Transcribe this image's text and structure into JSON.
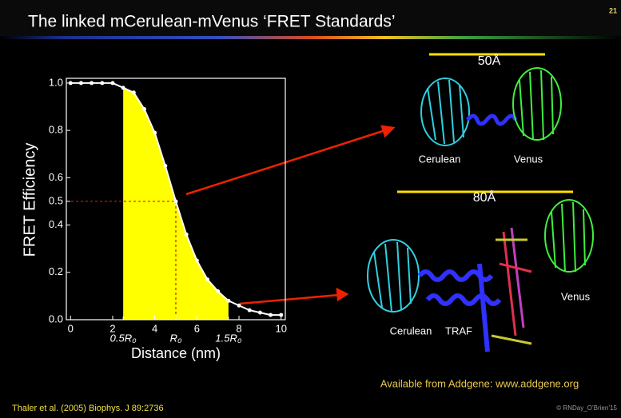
{
  "slide": {
    "title": "The linked mCerulean-mVenus ‘FRET Standards’",
    "number": "21",
    "structures": [
      {
        "distance": "50Å",
        "labels": [
          "Cerulean",
          "Venus"
        ]
      },
      {
        "distance": "80Å",
        "labels": [
          "Cerulean",
          "TRAF",
          "Venus"
        ]
      }
    ],
    "availability": "Available from Addgene: www.addgene.org",
    "citation": "Thaler et al. (2005) Biophys. J 89:2736",
    "copyright": "© RNDay_O’Brien’15"
  },
  "chart_data": {
    "type": "line",
    "x_label": "Distance (nm)",
    "y_label": "FRET Efficiency",
    "x": [
      0,
      0.5,
      1,
      1.5,
      2,
      2.5,
      3,
      3.5,
      4,
      4.5,
      5,
      5.5,
      6,
      6.5,
      7,
      7.5,
      8,
      8.5,
      9,
      9.5,
      10
    ],
    "series": [
      {
        "color": "#ffffff",
        "values": [
          1,
          1,
          1,
          1,
          1,
          0.98,
          0.96,
          0.89,
          0.79,
          0.65,
          0.5,
          0.36,
          0.25,
          0.17,
          0.12,
          0.08,
          0.06,
          0.04,
          0.03,
          0.02,
          0.02
        ]
      }
    ],
    "xlim": [
      -0.2,
      10.2
    ],
    "ylim": [
      0,
      1.02
    ],
    "xticks": [
      0,
      2,
      4,
      6,
      8,
      10
    ],
    "yticks": [
      {
        "value": 0,
        "label": "0.0"
      },
      0.2,
      0.4,
      0.5,
      0.6,
      0.8,
      {
        "value": 1,
        "label": "1.0"
      }
    ],
    "annotations": [
      {
        "x": 2.5,
        "label": "0.5R₀"
      },
      {
        "x": 5,
        "label": "R₀"
      },
      {
        "x": 7.5,
        "label": "1.5R₀"
      }
    ],
    "highlight": {
      "x": [
        2.5,
        7.5
      ],
      "color": "#ffff00"
    },
    "reference_lines": {
      "x": 5,
      "y": 0.5,
      "color": "#cc2200"
    }
  }
}
